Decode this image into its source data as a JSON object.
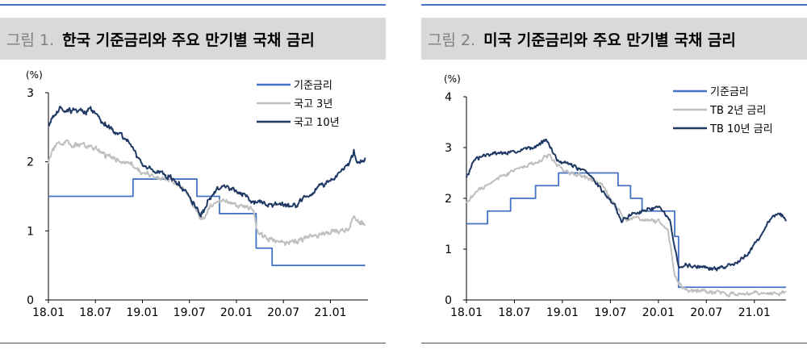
{
  "chart_data": [
    {
      "type": "line",
      "figure_label": "그림 1.",
      "title": "한국 기준금리와 주요 만기별 국채 금리",
      "unit": "(%)",
      "ylim": [
        0,
        3
      ],
      "yticks": [
        "0",
        "1",
        "2",
        "3"
      ],
      "xlim": [
        2018.0,
        2021.4
      ],
      "xticks": [
        {
          "x": 2018.0,
          "label": "18.01"
        },
        {
          "x": 2018.5,
          "label": "18.07"
        },
        {
          "x": 2019.0,
          "label": "19.01"
        },
        {
          "x": 2019.5,
          "label": "19.07"
        },
        {
          "x": 2020.0,
          "label": "20.01"
        },
        {
          "x": 2020.5,
          "label": "20.07"
        },
        {
          "x": 2021.0,
          "label": "21.01"
        }
      ],
      "legend_position": "top-right",
      "series": [
        {
          "name": "기준금리",
          "color": "#4472c4",
          "style": "step",
          "x": [
            2018.0,
            2018.9,
            2019.58,
            2019.82,
            2020.21,
            2020.38,
            2021.37
          ],
          "y": [
            1.5,
            1.75,
            1.5,
            1.25,
            0.75,
            0.5,
            0.5
          ]
        },
        {
          "name": "국고 3년",
          "color": "#bfbfbf",
          "style": "noisy",
          "x": [
            2018.0,
            2018.05,
            2018.15,
            2018.3,
            2018.45,
            2018.6,
            2018.75,
            2018.9,
            2019.0,
            2019.15,
            2019.3,
            2019.45,
            2019.55,
            2019.62,
            2019.7,
            2019.8,
            2019.9,
            2020.0,
            2020.1,
            2020.18,
            2020.22,
            2020.3,
            2020.45,
            2020.6,
            2020.75,
            2020.9,
            2021.0,
            2021.1,
            2021.2,
            2021.25,
            2021.3,
            2021.37
          ],
          "y": [
            2.0,
            2.2,
            2.28,
            2.25,
            2.22,
            2.1,
            2.02,
            1.95,
            1.82,
            1.78,
            1.75,
            1.6,
            1.35,
            1.15,
            1.3,
            1.45,
            1.4,
            1.38,
            1.35,
            1.32,
            1.0,
            0.9,
            0.85,
            0.83,
            0.9,
            0.95,
            0.97,
            1.0,
            1.02,
            1.2,
            1.12,
            1.1
          ]
        },
        {
          "name": "국고 10년",
          "color": "#1f3864",
          "style": "noisy",
          "x": [
            2018.0,
            2018.05,
            2018.15,
            2018.3,
            2018.45,
            2018.6,
            2018.75,
            2018.9,
            2019.0,
            2019.15,
            2019.3,
            2019.45,
            2019.55,
            2019.62,
            2019.7,
            2019.8,
            2019.9,
            2020.0,
            2020.1,
            2020.2,
            2020.3,
            2020.45,
            2020.6,
            2020.75,
            2020.9,
            2021.0,
            2021.1,
            2021.2,
            2021.25,
            2021.3,
            2021.37
          ],
          "y": [
            2.5,
            2.7,
            2.78,
            2.73,
            2.75,
            2.55,
            2.4,
            2.2,
            1.95,
            1.85,
            1.78,
            1.6,
            1.4,
            1.2,
            1.45,
            1.6,
            1.65,
            1.58,
            1.5,
            1.4,
            1.4,
            1.38,
            1.35,
            1.5,
            1.65,
            1.75,
            1.85,
            1.95,
            2.15,
            2.0,
            2.05
          ]
        }
      ]
    },
    {
      "type": "line",
      "figure_label": "그림 2.",
      "title": "미국 기준금리와 주요 만기별 국채 금리",
      "unit": "(%)",
      "ylim": [
        0,
        4
      ],
      "yticks": [
        "0",
        "1",
        "2",
        "3",
        "4"
      ],
      "xlim": [
        2018.0,
        2021.33
      ],
      "xticks": [
        {
          "x": 2018.0,
          "label": "18.01"
        },
        {
          "x": 2018.5,
          "label": "18.07"
        },
        {
          "x": 2019.0,
          "label": "19.01"
        },
        {
          "x": 2019.5,
          "label": "19.07"
        },
        {
          "x": 2020.0,
          "label": "20.01"
        },
        {
          "x": 2020.5,
          "label": "20.07"
        },
        {
          "x": 2021.0,
          "label": "21.01"
        }
      ],
      "legend_position": "top-right",
      "series": [
        {
          "name": "기준금리",
          "color": "#4472c4",
          "style": "step",
          "x": [
            2018.0,
            2018.22,
            2018.46,
            2018.72,
            2018.96,
            2019.58,
            2019.71,
            2019.83,
            2020.17,
            2020.21,
            2021.33
          ],
          "y": [
            1.5,
            1.75,
            2.0,
            2.25,
            2.5,
            2.25,
            2.0,
            1.75,
            1.25,
            0.25,
            0.25
          ]
        },
        {
          "name": "TB 2년 금리",
          "color": "#bfbfbf",
          "style": "noisy",
          "x": [
            2018.0,
            2018.15,
            2018.3,
            2018.5,
            2018.7,
            2018.85,
            2019.0,
            2019.2,
            2019.4,
            2019.55,
            2019.65,
            2019.8,
            2020.0,
            2020.1,
            2020.17,
            2020.22,
            2020.3,
            2020.5,
            2020.7,
            2020.9,
            2021.0,
            2021.15,
            2021.33
          ],
          "y": [
            1.95,
            2.2,
            2.35,
            2.55,
            2.7,
            2.85,
            2.55,
            2.45,
            2.3,
            1.85,
            1.6,
            1.6,
            1.55,
            1.4,
            0.5,
            0.3,
            0.2,
            0.15,
            0.13,
            0.15,
            0.12,
            0.12,
            0.15
          ]
        },
        {
          "name": "TB 10년 금리",
          "color": "#1f3864",
          "style": "noisy",
          "x": [
            2018.0,
            2018.1,
            2018.3,
            2018.5,
            2018.7,
            2018.83,
            2018.95,
            2019.1,
            2019.3,
            2019.45,
            2019.55,
            2019.62,
            2019.75,
            2019.9,
            2020.0,
            2020.12,
            2020.17,
            2020.22,
            2020.3,
            2020.45,
            2020.6,
            2020.75,
            2020.9,
            2021.0,
            2021.1,
            2021.18,
            2021.25,
            2021.33
          ],
          "y": [
            2.4,
            2.8,
            2.9,
            2.9,
            3.0,
            3.15,
            2.75,
            2.65,
            2.45,
            2.05,
            1.85,
            1.55,
            1.7,
            1.8,
            1.85,
            1.6,
            1.0,
            0.6,
            0.68,
            0.65,
            0.6,
            0.7,
            0.85,
            1.1,
            1.35,
            1.6,
            1.7,
            1.6
          ]
        }
      ]
    }
  ]
}
